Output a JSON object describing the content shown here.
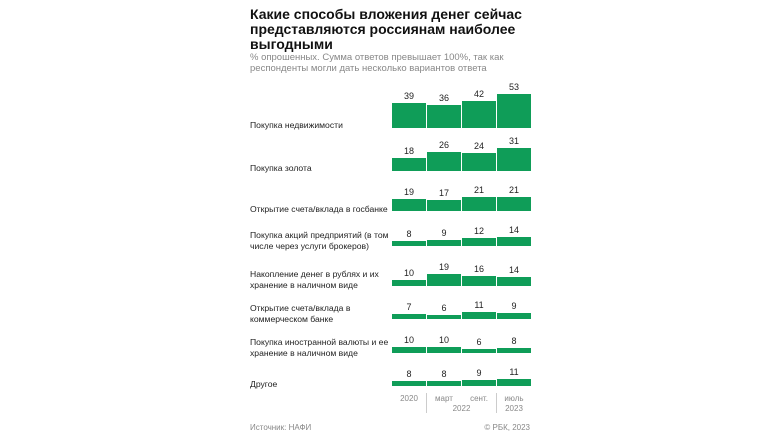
{
  "chart_data": {
    "type": "bar",
    "title": "Какие способы вложения денег сейчас представляются россиянам наиболее выгодными",
    "subtitle": "% опрошенных. Сумма ответов превышает 100%, так как респонденты могли дать несколько вариантов ответа",
    "periods": [
      {
        "line1": "2020",
        "line2": ""
      },
      {
        "line1": "март",
        "line2": ""
      },
      {
        "line1": "сент.",
        "line2": ""
      },
      {
        "line1": "июль",
        "line2": "2023"
      }
    ],
    "year_2022_label": "2022",
    "categories": [
      "Покупка недвижимости",
      "Покупка золота",
      "Открытие счета/вклада в госбанке",
      "Покупка акций предприятий (в том числе через услуги брокеров)",
      "Накопление денег в рублях и их хранение в наличном виде",
      "Открытие счета/вклада в коммерческом банке",
      "Покупка иностранной валюты и ее хранение в наличном виде",
      "Другое"
    ],
    "series": [
      {
        "name": "2020",
        "values": [
          39,
          18,
          19,
          8,
          10,
          7,
          10,
          8
        ]
      },
      {
        "name": "март 2022",
        "values": [
          36,
          26,
          17,
          9,
          19,
          6,
          10,
          8
        ]
      },
      {
        "name": "сент. 2022",
        "values": [
          42,
          24,
          21,
          12,
          16,
          11,
          6,
          9
        ]
      },
      {
        "name": "июль 2023",
        "values": [
          53,
          31,
          21,
          14,
          14,
          9,
          8,
          11
        ]
      }
    ],
    "ylim": [
      0,
      53
    ],
    "colors": {
      "bar": "#0f9d58"
    }
  },
  "footer": {
    "source": "Источник: НАФИ",
    "copyright": "© РБК, 2023"
  }
}
